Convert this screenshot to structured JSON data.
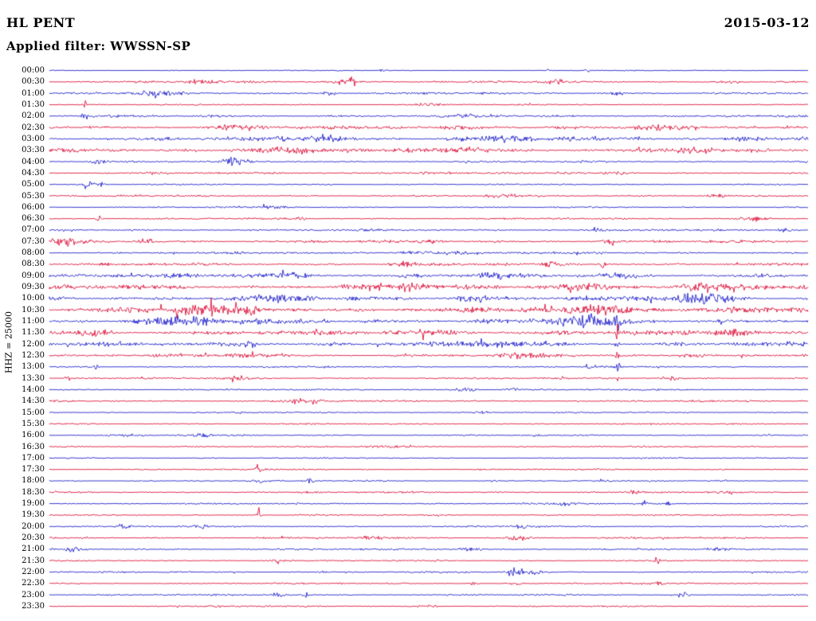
{
  "header": {
    "station": "HL PENT",
    "date": "2015-03-12",
    "filter_label": "Applied filter: WWSSN-SP"
  },
  "chart_data": {
    "type": "line",
    "subtype": "helicorder-seismogram",
    "title": "HL PENT",
    "date": "2015-03-12",
    "filter": "WWSSN-SP",
    "scale_label": "HHZ = 25000",
    "grid": false,
    "legend_position": "none",
    "minutes_per_row": 30,
    "colors": {
      "blue": "#2222cc",
      "red": "#dc143c",
      "text": "#000000",
      "background": "#ffffff"
    },
    "trace_color_pattern": [
      "blue",
      "red"
    ],
    "rows": [
      {
        "label": "00:00",
        "color": "blue",
        "amp": 0.5,
        "events": [
          {
            "x": 0.44,
            "a": 1.5,
            "w": 0.004
          },
          {
            "x": 0.66,
            "a": 2,
            "w": 0.003
          },
          {
            "x": 0.71,
            "a": 1.5,
            "w": 0.003
          }
        ]
      },
      {
        "label": "00:30",
        "color": "red",
        "amp": 1.2,
        "events": [
          {
            "x": 0.2,
            "a": 2,
            "w": 0.012
          },
          {
            "x": 0.385,
            "a": 3.5,
            "w": 0.01
          },
          {
            "x": 0.4,
            "a": 4,
            "w": 0.004
          },
          {
            "x": 0.67,
            "a": 2,
            "w": 0.01
          },
          {
            "x": 0.9,
            "a": 2,
            "w": 0.012
          }
        ]
      },
      {
        "label": "01:00",
        "color": "blue",
        "amp": 1.2,
        "events": [
          {
            "x": 0.14,
            "a": 2.5,
            "w": 0.02
          },
          {
            "x": 0.37,
            "a": 2,
            "w": 0.008
          },
          {
            "x": 0.75,
            "a": 1.8,
            "w": 0.01
          }
        ]
      },
      {
        "label": "01:30",
        "color": "red",
        "amp": 0.7,
        "events": [
          {
            "x": 0.046,
            "a": 5,
            "w": 0.0025
          },
          {
            "x": 0.5,
            "a": 1.2,
            "w": 0.02
          }
        ]
      },
      {
        "label": "02:00",
        "color": "blue",
        "amp": 1.3,
        "events": [
          {
            "x": 0.046,
            "a": 6,
            "w": 0.0025
          },
          {
            "x": 0.55,
            "a": 2,
            "w": 0.012
          }
        ]
      },
      {
        "label": "02:30",
        "color": "red",
        "amp": 1.7,
        "events": [
          {
            "x": 0.25,
            "a": 2.5,
            "w": 0.02
          },
          {
            "x": 0.55,
            "a": 2.2,
            "w": 0.02
          },
          {
            "x": 0.8,
            "a": 2,
            "w": 0.02
          }
        ]
      },
      {
        "label": "03:00",
        "color": "blue",
        "amp": 2.0,
        "events": [
          {
            "x": 0.35,
            "a": 2.8,
            "w": 0.03
          },
          {
            "x": 0.6,
            "a": 2.8,
            "w": 0.03
          },
          {
            "x": 0.92,
            "a": 2.2,
            "w": 0.02
          }
        ]
      },
      {
        "label": "03:30",
        "color": "red",
        "amp": 2.0,
        "events": [
          {
            "x": 0.3,
            "a": 3,
            "w": 0.035
          },
          {
            "x": 0.55,
            "a": 2.8,
            "w": 0.03
          },
          {
            "x": 0.85,
            "a": 2.5,
            "w": 0.02
          }
        ]
      },
      {
        "label": "04:00",
        "color": "blue",
        "amp": 1.0,
        "events": [
          {
            "x": 0.065,
            "a": 2.8,
            "w": 0.008
          },
          {
            "x": 0.239,
            "a": 5,
            "w": 0.006
          },
          {
            "x": 0.248,
            "a": 3,
            "w": 0.012
          }
        ]
      },
      {
        "label": "04:30",
        "color": "red",
        "amp": 1.1,
        "events": [
          {
            "x": 0.5,
            "a": 1.5,
            "w": 0.02
          },
          {
            "x": 0.75,
            "a": 1.5,
            "w": 0.01
          }
        ]
      },
      {
        "label": "05:00",
        "color": "blue",
        "amp": 0.8,
        "events": [
          {
            "x": 0.052,
            "a": 4.5,
            "w": 0.004
          },
          {
            "x": 0.068,
            "a": 3,
            "w": 0.004
          }
        ]
      },
      {
        "label": "05:30",
        "color": "red",
        "amp": 1.0,
        "events": [
          {
            "x": 0.6,
            "a": 1.5,
            "w": 0.02
          },
          {
            "x": 0.88,
            "a": 1.8,
            "w": 0.01
          }
        ]
      },
      {
        "label": "06:00",
        "color": "blue",
        "amp": 0.8,
        "events": [
          {
            "x": 0.3,
            "a": 1.2,
            "w": 0.02
          }
        ]
      },
      {
        "label": "06:30",
        "color": "red",
        "amp": 1.0,
        "events": [
          {
            "x": 0.065,
            "a": 3,
            "w": 0.003
          },
          {
            "x": 0.33,
            "a": 2.5,
            "w": 0.005
          },
          {
            "x": 0.93,
            "a": 2.8,
            "w": 0.012
          }
        ]
      },
      {
        "label": "07:00",
        "color": "blue",
        "amp": 1.2,
        "events": [
          {
            "x": 0.72,
            "a": 3,
            "w": 0.004
          },
          {
            "x": 0.97,
            "a": 2.5,
            "w": 0.006
          }
        ]
      },
      {
        "label": "07:30",
        "color": "red",
        "amp": 1.5,
        "events": [
          {
            "x": 0.02,
            "a": 4,
            "w": 0.015
          },
          {
            "x": 0.13,
            "a": 2.5,
            "w": 0.01
          },
          {
            "x": 0.5,
            "a": 2,
            "w": 0.01
          },
          {
            "x": 0.74,
            "a": 2,
            "w": 0.008
          }
        ]
      },
      {
        "label": "08:00",
        "color": "blue",
        "amp": 1.2,
        "events": [
          {
            "x": 0.5,
            "a": 1.5,
            "w": 0.05
          },
          {
            "x": 0.73,
            "a": 2.5,
            "w": 0.003
          }
        ]
      },
      {
        "label": "08:30",
        "color": "red",
        "amp": 1.5,
        "events": [
          {
            "x": 0.47,
            "a": 2.5,
            "w": 0.01
          },
          {
            "x": 0.66,
            "a": 2.5,
            "w": 0.006
          },
          {
            "x": 0.73,
            "a": 4,
            "w": 0.003
          }
        ]
      },
      {
        "label": "09:00",
        "color": "blue",
        "amp": 2.0,
        "events": [
          {
            "x": 0.3,
            "a": 2.5,
            "w": 0.03
          },
          {
            "x": 0.586,
            "a": 5,
            "w": 0.01
          },
          {
            "x": 0.75,
            "a": 2.5,
            "w": 0.02
          }
        ]
      },
      {
        "label": "09:30",
        "color": "red",
        "amp": 2.4,
        "events": [
          {
            "x": 0.45,
            "a": 3,
            "w": 0.04
          },
          {
            "x": 0.7,
            "a": 3.5,
            "w": 0.03
          },
          {
            "x": 0.87,
            "a": 3.5,
            "w": 0.03
          }
        ]
      },
      {
        "label": "10:00",
        "color": "blue",
        "amp": 2.4,
        "events": [
          {
            "x": 0.3,
            "a": 2.5,
            "w": 0.03
          },
          {
            "x": 0.56,
            "a": 3.5,
            "w": 0.02
          },
          {
            "x": 0.86,
            "a": 5,
            "w": 0.03
          }
        ]
      },
      {
        "label": "10:30",
        "color": "red",
        "amp": 2.8,
        "events": [
          {
            "x": 0.21,
            "a": 4.5,
            "w": 0.04
          },
          {
            "x": 0.73,
            "a": 5.5,
            "w": 0.03
          },
          {
            "x": 0.9,
            "a": 3.5,
            "w": 0.02
          }
        ]
      },
      {
        "label": "11:00",
        "color": "blue",
        "amp": 2.8,
        "events": [
          {
            "x": 0.17,
            "a": 4.5,
            "w": 0.03
          },
          {
            "x": 0.71,
            "a": 6,
            "w": 0.025
          },
          {
            "x": 0.749,
            "a": 12,
            "w": 0.0025
          }
        ]
      },
      {
        "label": "11:30",
        "color": "red",
        "amp": 2.4,
        "events": [
          {
            "x": 0.05,
            "a": 3,
            "w": 0.02
          },
          {
            "x": 0.5,
            "a": 3,
            "w": 0.03
          },
          {
            "x": 0.749,
            "a": 9,
            "w": 0.002
          },
          {
            "x": 0.9,
            "a": 3,
            "w": 0.02
          }
        ]
      },
      {
        "label": "12:00",
        "color": "blue",
        "amp": 2.2,
        "events": [
          {
            "x": 0.26,
            "a": 3.5,
            "w": 0.015
          },
          {
            "x": 0.6,
            "a": 2.5,
            "w": 0.04
          },
          {
            "x": 0.749,
            "a": 6,
            "w": 0.002
          }
        ]
      },
      {
        "label": "12:30",
        "color": "red",
        "amp": 1.6,
        "events": [
          {
            "x": 0.26,
            "a": 2.5,
            "w": 0.012
          },
          {
            "x": 0.63,
            "a": 2.5,
            "w": 0.02
          },
          {
            "x": 0.749,
            "a": 5,
            "w": 0.002
          },
          {
            "x": 0.85,
            "a": 2,
            "w": 0.015
          }
        ]
      },
      {
        "label": "13:00",
        "color": "blue",
        "amp": 0.9,
        "events": [
          {
            "x": 0.061,
            "a": 3,
            "w": 0.003
          },
          {
            "x": 0.71,
            "a": 2.5,
            "w": 0.004
          },
          {
            "x": 0.749,
            "a": 7,
            "w": 0.002
          }
        ]
      },
      {
        "label": "13:30",
        "color": "red",
        "amp": 1.0,
        "events": [
          {
            "x": 0.024,
            "a": 4,
            "w": 0.003
          },
          {
            "x": 0.25,
            "a": 2.5,
            "w": 0.008
          },
          {
            "x": 0.749,
            "a": 3,
            "w": 0.002
          },
          {
            "x": 0.82,
            "a": 2,
            "w": 0.01
          }
        ]
      },
      {
        "label": "14:00",
        "color": "blue",
        "amp": 0.9,
        "events": [
          {
            "x": 0.55,
            "a": 2,
            "w": 0.012
          },
          {
            "x": 0.61,
            "a": 2.2,
            "w": 0.008
          }
        ]
      },
      {
        "label": "14:30",
        "color": "red",
        "amp": 1.0,
        "events": [
          {
            "x": 0.33,
            "a": 3,
            "w": 0.012
          },
          {
            "x": 0.35,
            "a": 2.5,
            "w": 0.008
          }
        ]
      },
      {
        "label": "15:00",
        "color": "blue",
        "amp": 0.8,
        "events": [
          {
            "x": 0.57,
            "a": 1.5,
            "w": 0.01
          }
        ]
      },
      {
        "label": "15:30",
        "color": "red",
        "amp": 0.8,
        "events": []
      },
      {
        "label": "16:00",
        "color": "blue",
        "amp": 0.9,
        "events": [
          {
            "x": 0.1,
            "a": 1.5,
            "w": 0.015
          },
          {
            "x": 0.2,
            "a": 2,
            "w": 0.008
          }
        ]
      },
      {
        "label": "16:30",
        "color": "red",
        "amp": 0.8,
        "events": [
          {
            "x": 0.45,
            "a": 1.2,
            "w": 0.02
          }
        ]
      },
      {
        "label": "17:00",
        "color": "blue",
        "amp": 0.7,
        "events": []
      },
      {
        "label": "17:30",
        "color": "red",
        "amp": 0.8,
        "events": [
          {
            "x": 0.276,
            "a": 7,
            "w": 0.0025
          }
        ]
      },
      {
        "label": "18:00",
        "color": "blue",
        "amp": 0.9,
        "events": [
          {
            "x": 0.276,
            "a": 2.5,
            "w": 0.0025
          },
          {
            "x": 0.344,
            "a": 5,
            "w": 0.0025
          }
        ]
      },
      {
        "label": "18:30",
        "color": "red",
        "amp": 1.0,
        "events": [
          {
            "x": 0.77,
            "a": 2.5,
            "w": 0.004
          },
          {
            "x": 0.9,
            "a": 2,
            "w": 0.004
          }
        ]
      },
      {
        "label": "19:00",
        "color": "blue",
        "amp": 0.9,
        "events": [
          {
            "x": 0.68,
            "a": 2,
            "w": 0.01
          },
          {
            "x": 0.785,
            "a": 4,
            "w": 0.0025
          },
          {
            "x": 0.817,
            "a": 5,
            "w": 0.0025
          }
        ]
      },
      {
        "label": "19:30",
        "color": "red",
        "amp": 0.8,
        "events": [
          {
            "x": 0.276,
            "a": 5,
            "w": 0.0025
          }
        ]
      },
      {
        "label": "20:00",
        "color": "blue",
        "amp": 0.9,
        "events": [
          {
            "x": 0.1,
            "a": 2,
            "w": 0.005
          },
          {
            "x": 0.2,
            "a": 2,
            "w": 0.005
          },
          {
            "x": 0.62,
            "a": 2,
            "w": 0.008
          }
        ]
      },
      {
        "label": "20:30",
        "color": "red",
        "amp": 1.0,
        "events": [
          {
            "x": 0.42,
            "a": 2.5,
            "w": 0.012
          },
          {
            "x": 0.62,
            "a": 2.5,
            "w": 0.012
          }
        ]
      },
      {
        "label": "21:00",
        "color": "blue",
        "amp": 1.0,
        "events": [
          {
            "x": 0.03,
            "a": 2.5,
            "w": 0.008
          },
          {
            "x": 0.55,
            "a": 2,
            "w": 0.012
          },
          {
            "x": 0.88,
            "a": 1.5,
            "w": 0.01
          }
        ]
      },
      {
        "label": "21:30",
        "color": "red",
        "amp": 0.8,
        "events": [
          {
            "x": 0.3,
            "a": 1.5,
            "w": 0.008
          },
          {
            "x": 0.8,
            "a": 5,
            "w": 0.0025
          }
        ]
      },
      {
        "label": "22:00",
        "color": "blue",
        "amp": 0.9,
        "events": [
          {
            "x": 0.36,
            "a": 2,
            "w": 0.004
          },
          {
            "x": 0.612,
            "a": 8,
            "w": 0.006
          },
          {
            "x": 0.63,
            "a": 3,
            "w": 0.012
          }
        ]
      },
      {
        "label": "22:30",
        "color": "red",
        "amp": 0.8,
        "events": [
          {
            "x": 0.56,
            "a": 2,
            "w": 0.004
          },
          {
            "x": 0.615,
            "a": 2,
            "w": 0.004
          },
          {
            "x": 0.8,
            "a": 1.5,
            "w": 0.006
          }
        ]
      },
      {
        "label": "23:00",
        "color": "blue",
        "amp": 0.9,
        "events": [
          {
            "x": 0.3,
            "a": 3,
            "w": 0.006
          },
          {
            "x": 0.337,
            "a": 4,
            "w": 0.003
          },
          {
            "x": 0.833,
            "a": 2.5,
            "w": 0.008
          }
        ]
      },
      {
        "label": "23:30",
        "color": "red",
        "amp": 0.8,
        "events": [
          {
            "x": 0.22,
            "a": 2,
            "w": 0.004
          },
          {
            "x": 0.5,
            "a": 1.5,
            "w": 0.01
          }
        ]
      }
    ]
  }
}
